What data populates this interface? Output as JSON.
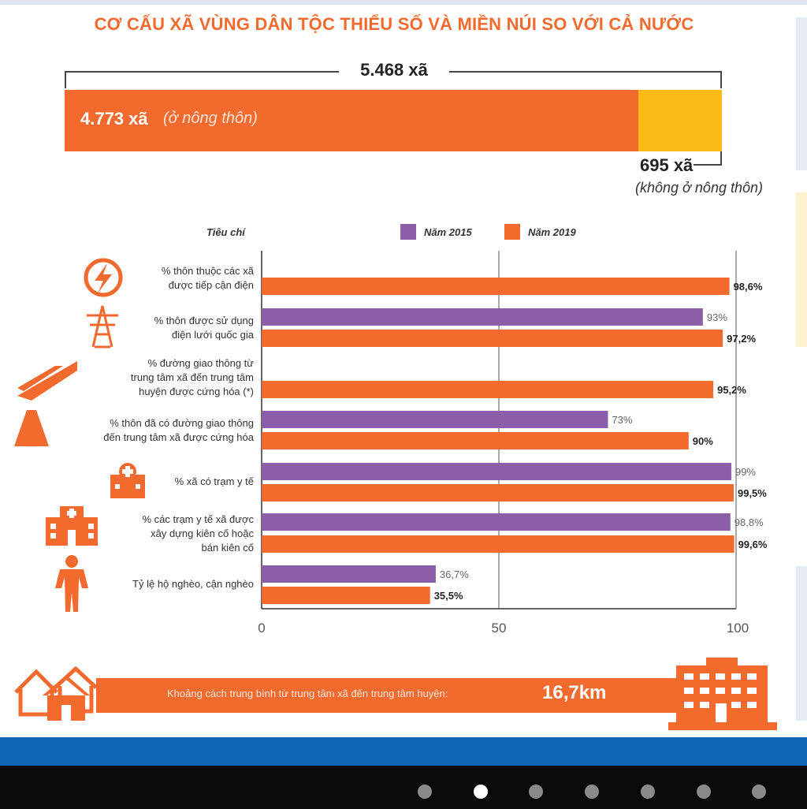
{
  "title": "CƠ CẤU XÃ VÙNG DÂN TỘC THIỂU SỐ VÀ MIỀN NÚI SO VỚI CẢ NƯỚC",
  "structure": {
    "total_label": "5.468 xã",
    "total": 5468,
    "rural_count_label": "4.773 xã",
    "rural_note": "(ở nông thôn)",
    "rural": 4773,
    "nonrural_count_label": "695 xã",
    "nonrural_note": "(không ở nông thôn)",
    "nonrural": 695
  },
  "legend": {
    "criteria_header": "Tiêu chí",
    "series_2015": "Năm 2015",
    "series_2019": "Năm 2019"
  },
  "colors": {
    "orange": "#f26a2e",
    "purple": "#8a5fa8",
    "yellow": "#fdbb16",
    "blue": "#0d66b7"
  },
  "chart_data": {
    "type": "bar",
    "orientation": "horizontal",
    "xlim": [
      0,
      100
    ],
    "xticks": [
      "0",
      "50",
      "100"
    ],
    "grid": "vertical line at 50",
    "legend_position": "top",
    "categories": [
      {
        "label": "% thôn thuộc các xã được tiếp cận điện",
        "lines": [
          "% thôn thuộc các xã",
          "được tiếp cận điện"
        ],
        "icon": "lightning-icon"
      },
      {
        "label": "% thôn được sử dụng điện lưới quốc gia",
        "lines": [
          "% thôn được sử dụng",
          "điện lưới quốc gia"
        ],
        "icon": "power-tower-icon"
      },
      {
        "label": "% đường giao thông từ trung tâm xã đến trung tâm huyện được cứng hóa (*)",
        "lines": [
          "% đường giao thông từ",
          "trung tâm xã đến trung tâm",
          "huyện được cứng hóa (*)"
        ],
        "icon": "highway-icon"
      },
      {
        "label": "% thôn đã có đường giao thông đến trung tâm xã được cứng hóa",
        "lines": [
          "% thôn đã có đường giao thông",
          "đến trung tâm xã được cứng hóa"
        ],
        "icon": "road-icon"
      },
      {
        "label": "% xã có trạm y tế",
        "lines": [
          "% xã có trạm y tế"
        ],
        "icon": "medical-station-icon"
      },
      {
        "label": "% các trạm y tế xã được xây dựng kiên cố hoặc bán kiên cố",
        "lines": [
          "% các trạm y tế xã được",
          "xây dựng kiên cố hoặc",
          "bán kiên cố"
        ],
        "icon": "hospital-icon"
      },
      {
        "label": "Tỷ lệ hộ nghèo, cận nghèo",
        "lines": [
          "Tỷ lệ hộ nghèo, cận nghèo"
        ],
        "icon": "person-icon"
      }
    ],
    "series": [
      {
        "name": "Năm 2015",
        "color": "#8a5fa8",
        "values": [
          null,
          93,
          null,
          73,
          99,
          98.8,
          36.7
        ],
        "labels": [
          "",
          "93%",
          "",
          "73%",
          "99%",
          "98,8%",
          "36,7%"
        ]
      },
      {
        "name": "Năm 2019",
        "color": "#f26a2e",
        "values": [
          98.6,
          97.2,
          95.2,
          90,
          99.5,
          99.6,
          35.5
        ],
        "labels": [
          "98,6%",
          "97,2%",
          "95,2%",
          "90%",
          "99,5%",
          "99,6%",
          "35,5%"
        ]
      }
    ]
  },
  "footer": {
    "distance_text": "Khoảng cách trung bình từ trung tâm xã đến trung tâm huyện:",
    "distance_value": "16,7km",
    "house_icon": "houses-icon",
    "building_icon": "building-icon"
  },
  "carousel": {
    "dot_count": 8,
    "active_index": 1
  }
}
